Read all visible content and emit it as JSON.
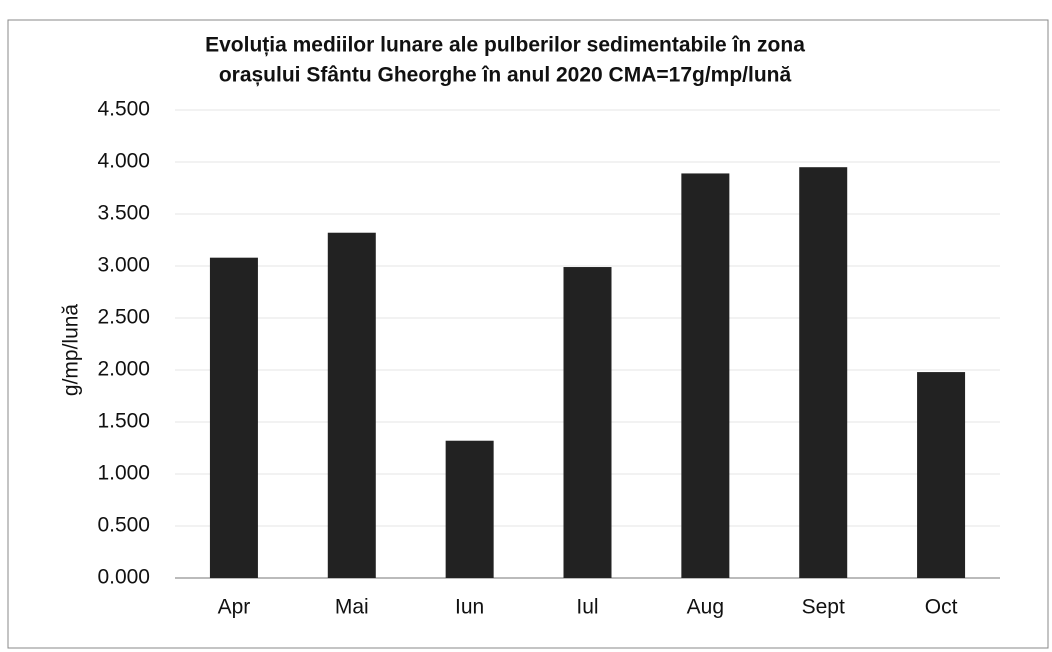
{
  "chart_data": {
    "type": "bar",
    "title": [
      "Evoluția mediilor lunare ale pulberilor sedimentabile în zona",
      "orașului Sfântu Gheorghe în anul 2020     CMA=17g/mp/lună"
    ],
    "y_label": "g/mp/lună",
    "categories": [
      "Apr",
      "Mai",
      "Iun",
      "Iul",
      "Aug",
      "Sept",
      "Oct"
    ],
    "values": [
      3.08,
      3.32,
      1.32,
      2.99,
      3.89,
      3.95,
      1.98
    ],
    "color": "#222222",
    "ylim": [
      0,
      4.5
    ],
    "yticks": [
      {
        "value": 0,
        "label": "0.000"
      },
      {
        "value": 0.5,
        "label": "0.500"
      },
      {
        "value": 1,
        "label": "1.000"
      },
      {
        "value": 1.5,
        "label": "1.500"
      },
      {
        "value": 2,
        "label": "2.000"
      },
      {
        "value": 2.5,
        "label": "2.500"
      },
      {
        "value": 3,
        "label": "3.000"
      },
      {
        "value": 3.5,
        "label": "3.500"
      },
      {
        "value": 4,
        "label": "4.000"
      },
      {
        "value": 4.5,
        "label": "4.500"
      }
    ],
    "grid": true
  }
}
